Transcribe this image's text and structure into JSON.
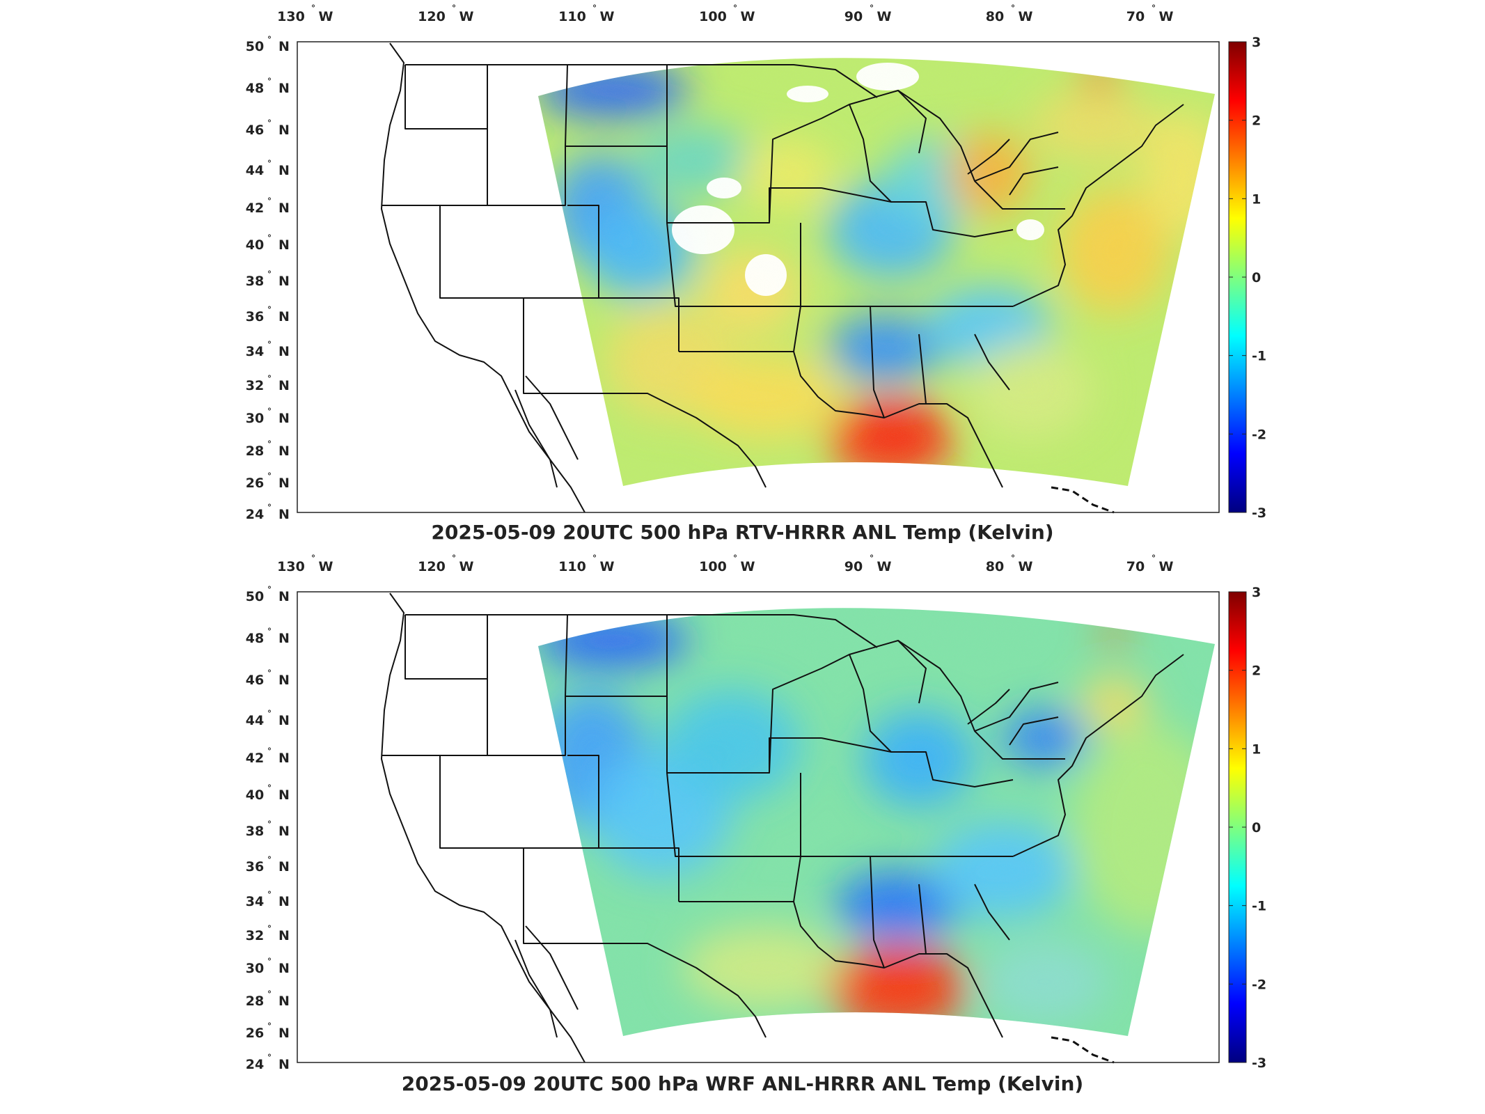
{
  "panels": [
    {
      "title": "2025-05-09 20UTC 500 hPa RTV-HRRR ANL Temp (Kelvin)",
      "variant": "rtv"
    },
    {
      "title": "2025-05-09 20UTC 500 hPa WRF ANL-HRRR ANL Temp (Kelvin)",
      "variant": "wrf"
    }
  ],
  "lon_ticks": [
    {
      "value": 130,
      "label": "130",
      "hemi": "W"
    },
    {
      "value": 120,
      "label": "120",
      "hemi": "W"
    },
    {
      "value": 110,
      "label": "110",
      "hemi": "W"
    },
    {
      "value": 100,
      "label": "100",
      "hemi": "W"
    },
    {
      "value": 90,
      "label": "90",
      "hemi": "W"
    },
    {
      "value": 80,
      "label": "80",
      "hemi": "W"
    },
    {
      "value": 70,
      "label": "70",
      "hemi": "W"
    }
  ],
  "lat_ticks": [
    {
      "value": 50,
      "label": "50",
      "hemi": "N"
    },
    {
      "value": 48,
      "label": "48",
      "hemi": "N"
    },
    {
      "value": 46,
      "label": "46",
      "hemi": "N"
    },
    {
      "value": 44,
      "label": "44",
      "hemi": "N"
    },
    {
      "value": 42,
      "label": "42",
      "hemi": "N"
    },
    {
      "value": 40,
      "label": "40",
      "hemi": "N"
    },
    {
      "value": 38,
      "label": "38",
      "hemi": "N"
    },
    {
      "value": 36,
      "label": "36",
      "hemi": "N"
    },
    {
      "value": 34,
      "label": "34",
      "hemi": "N"
    },
    {
      "value": 32,
      "label": "32",
      "hemi": "N"
    },
    {
      "value": 30,
      "label": "30",
      "hemi": "N"
    },
    {
      "value": 28,
      "label": "28",
      "hemi": "N"
    },
    {
      "value": 26,
      "label": "26",
      "hemi": "N"
    },
    {
      "value": 24,
      "label": "24",
      "hemi": "N"
    }
  ],
  "colorbar": {
    "min": -3,
    "max": 3,
    "ticks": [
      "3",
      "2",
      "1",
      "0",
      "-1",
      "-2",
      "-3"
    ],
    "colormap": "jet",
    "stops": [
      "#00007f",
      "#0000ff",
      "#00ffff",
      "#7fff7f",
      "#ffff00",
      "#ff0000",
      "#7f0000"
    ]
  }
}
